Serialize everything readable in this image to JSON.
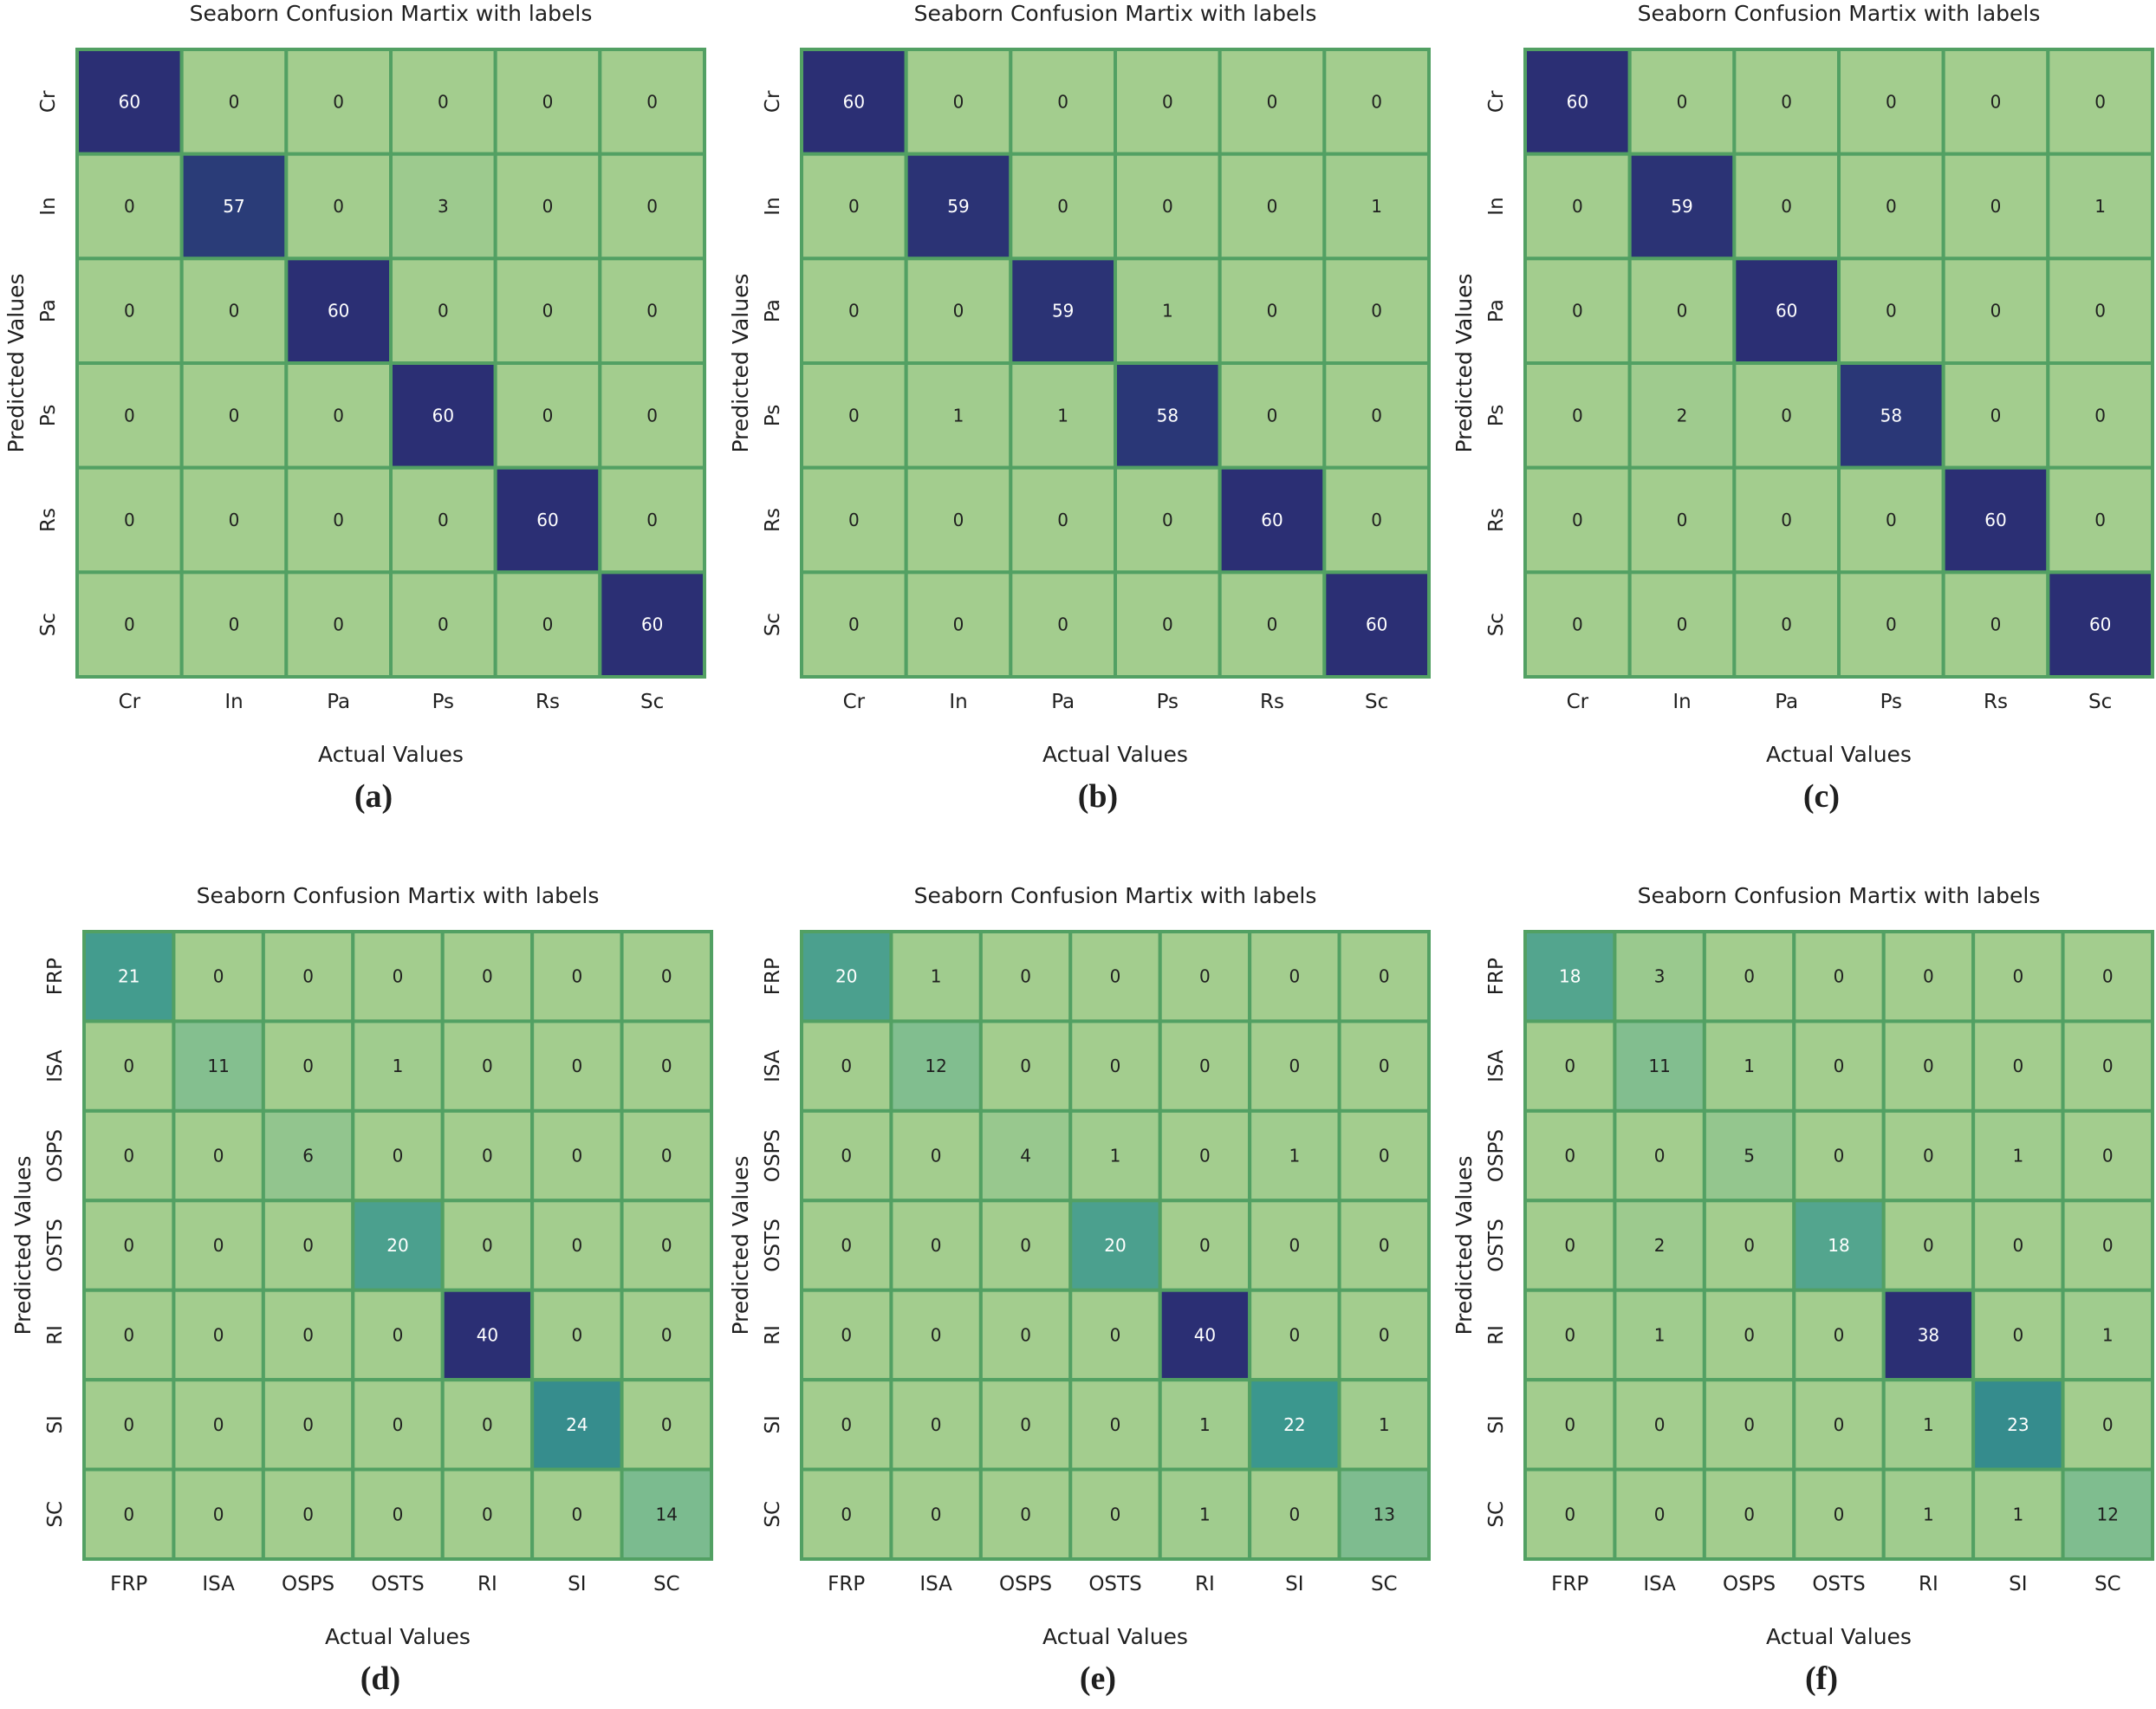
{
  "colors": {
    "low": "#a3cd8e",
    "high": "#2b2f74",
    "grid": "#52a063",
    "text_dark": "#1f1f1f",
    "text_light": "#ffffff"
  },
  "chart_data": [
    {
      "type": "heatmap",
      "title": "Seaborn Confusion Martix with labels",
      "xlabel": "Actual Values",
      "ylabel": "Predicted Values",
      "caption": "(a)",
      "x_categories": [
        "Cr",
        "In",
        "Pa",
        "Ps",
        "Rs",
        "Sc"
      ],
      "y_categories": [
        "Cr",
        "In",
        "Pa",
        "Ps",
        "Rs",
        "Sc"
      ],
      "vmax": 60,
      "values": [
        [
          60,
          0,
          0,
          0,
          0,
          0
        ],
        [
          0,
          57,
          0,
          3,
          0,
          0
        ],
        [
          0,
          0,
          60,
          0,
          0,
          0
        ],
        [
          0,
          0,
          0,
          60,
          0,
          0
        ],
        [
          0,
          0,
          0,
          0,
          60,
          0
        ],
        [
          0,
          0,
          0,
          0,
          0,
          60
        ]
      ]
    },
    {
      "type": "heatmap",
      "title": "Seaborn Confusion Martix with labels",
      "xlabel": "Actual Values",
      "ylabel": "Predicted Values",
      "caption": "(b)",
      "x_categories": [
        "Cr",
        "In",
        "Pa",
        "Ps",
        "Rs",
        "Sc"
      ],
      "y_categories": [
        "Cr",
        "In",
        "Pa",
        "Ps",
        "Rs",
        "Sc"
      ],
      "vmax": 60,
      "values": [
        [
          60,
          0,
          0,
          0,
          0,
          0
        ],
        [
          0,
          59,
          0,
          0,
          0,
          1
        ],
        [
          0,
          0,
          59,
          1,
          0,
          0
        ],
        [
          0,
          1,
          1,
          58,
          0,
          0
        ],
        [
          0,
          0,
          0,
          0,
          60,
          0
        ],
        [
          0,
          0,
          0,
          0,
          0,
          60
        ]
      ]
    },
    {
      "type": "heatmap",
      "title": "Seaborn Confusion Martix with labels",
      "xlabel": "Actual Values",
      "ylabel": "Predicted Values",
      "caption": "(c)",
      "x_categories": [
        "Cr",
        "In",
        "Pa",
        "Ps",
        "Rs",
        "Sc"
      ],
      "y_categories": [
        "Cr",
        "In",
        "Pa",
        "Ps",
        "Rs",
        "Sc"
      ],
      "vmax": 60,
      "values": [
        [
          60,
          0,
          0,
          0,
          0,
          0
        ],
        [
          0,
          59,
          0,
          0,
          0,
          1
        ],
        [
          0,
          0,
          60,
          0,
          0,
          0
        ],
        [
          0,
          2,
          0,
          58,
          0,
          0
        ],
        [
          0,
          0,
          0,
          0,
          60,
          0
        ],
        [
          0,
          0,
          0,
          0,
          0,
          60
        ]
      ]
    },
    {
      "type": "heatmap",
      "title": "Seaborn Confusion Martix with labels",
      "xlabel": "Actual Values",
      "ylabel": "Predicted Values",
      "caption": "(d)",
      "x_categories": [
        "FRP",
        "ISA",
        "OSPS",
        "OSTS",
        "RI",
        "SI",
        "SC"
      ],
      "y_categories": [
        "FRP",
        "ISA",
        "OSPS",
        "OSTS",
        "RI",
        "SI",
        "SC"
      ],
      "vmax": 40,
      "values": [
        [
          21,
          0,
          0,
          0,
          0,
          0,
          0
        ],
        [
          0,
          11,
          0,
          1,
          0,
          0,
          0
        ],
        [
          0,
          0,
          6,
          0,
          0,
          0,
          0
        ],
        [
          0,
          0,
          0,
          20,
          0,
          0,
          0
        ],
        [
          0,
          0,
          0,
          0,
          40,
          0,
          0
        ],
        [
          0,
          0,
          0,
          0,
          0,
          24,
          0
        ],
        [
          0,
          0,
          0,
          0,
          0,
          0,
          14
        ]
      ]
    },
    {
      "type": "heatmap",
      "title": "Seaborn Confusion Martix with labels",
      "xlabel": "Actual Values",
      "ylabel": "Predicted Values",
      "caption": "(e)",
      "x_categories": [
        "FRP",
        "ISA",
        "OSPS",
        "OSTS",
        "RI",
        "SI",
        "SC"
      ],
      "y_categories": [
        "FRP",
        "ISA",
        "OSPS",
        "OSTS",
        "RI",
        "SI",
        "SC"
      ],
      "vmax": 40,
      "values": [
        [
          20,
          1,
          0,
          0,
          0,
          0,
          0
        ],
        [
          0,
          12,
          0,
          0,
          0,
          0,
          0
        ],
        [
          0,
          0,
          4,
          1,
          0,
          1,
          0
        ],
        [
          0,
          0,
          0,
          20,
          0,
          0,
          0
        ],
        [
          0,
          0,
          0,
          0,
          40,
          0,
          0
        ],
        [
          0,
          0,
          0,
          0,
          1,
          22,
          1
        ],
        [
          0,
          0,
          0,
          0,
          1,
          0,
          13
        ]
      ]
    },
    {
      "type": "heatmap",
      "title": "Seaborn Confusion Martix with labels",
      "xlabel": "Actual Values",
      "ylabel": "Predicted Values",
      "caption": "(f)",
      "x_categories": [
        "FRP",
        "ISA",
        "OSPS",
        "OSTS",
        "RI",
        "SI",
        "SC"
      ],
      "y_categories": [
        "FRP",
        "ISA",
        "OSPS",
        "OSTS",
        "RI",
        "SI",
        "SC"
      ],
      "vmax": 38,
      "values": [
        [
          18,
          3,
          0,
          0,
          0,
          0,
          0
        ],
        [
          0,
          11,
          1,
          0,
          0,
          0,
          0
        ],
        [
          0,
          0,
          5,
          0,
          0,
          1,
          0
        ],
        [
          0,
          2,
          0,
          18,
          0,
          0,
          0
        ],
        [
          0,
          1,
          0,
          0,
          38,
          0,
          1
        ],
        [
          0,
          0,
          0,
          0,
          1,
          23,
          0
        ],
        [
          0,
          0,
          0,
          0,
          1,
          1,
          12
        ]
      ]
    }
  ]
}
